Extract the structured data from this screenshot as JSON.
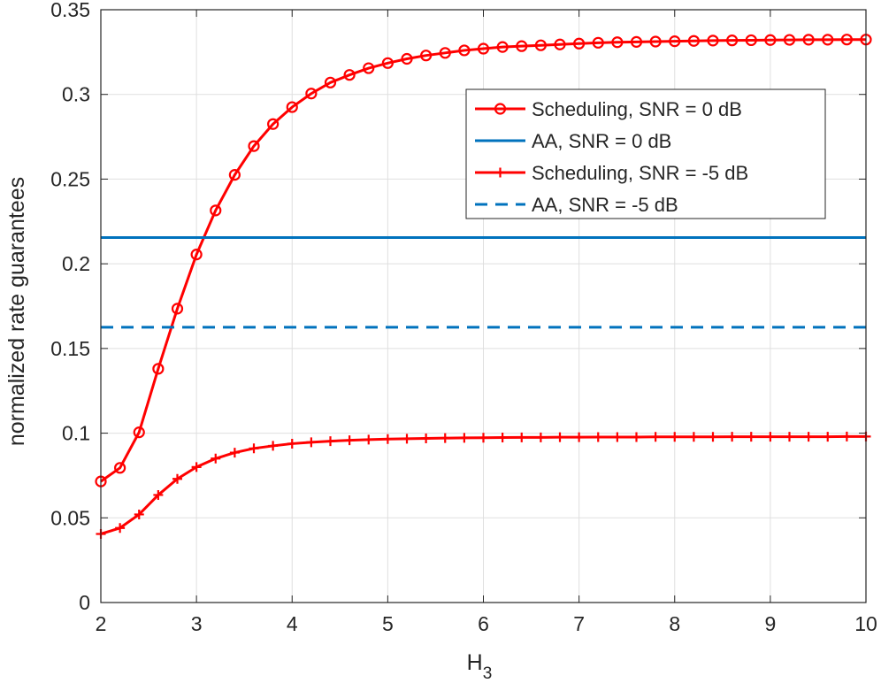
{
  "chart_data": {
    "type": "line",
    "xlabel": "H",
    "xlabel_subscript": "3",
    "ylabel": "normalized rate guarantees",
    "xlim": [
      2,
      10
    ],
    "ylim": [
      0,
      0.35
    ],
    "xticks": [
      2,
      3,
      4,
      5,
      6,
      7,
      8,
      9,
      10
    ],
    "xtick_labels": [
      "2",
      "3",
      "4",
      "5",
      "6",
      "7",
      "8",
      "9",
      "10"
    ],
    "yticks": [
      0,
      0.05,
      0.1,
      0.15,
      0.2,
      0.25,
      0.3,
      0.35
    ],
    "ytick_labels": [
      "0",
      "0.05",
      "0.1",
      "0.15",
      "0.2",
      "0.25",
      "0.3",
      "0.35"
    ],
    "grid": true,
    "legend_position": "top-right",
    "x": [
      2.0,
      2.2,
      2.4,
      2.6,
      2.8,
      3.0,
      3.2,
      3.4,
      3.6,
      3.8,
      4.0,
      4.2,
      4.4,
      4.6,
      4.8,
      5.0,
      5.2,
      5.4,
      5.6,
      5.8,
      6.0,
      6.2,
      6.4,
      6.6,
      6.8,
      7.0,
      7.2,
      7.4,
      7.6,
      7.8,
      8.0,
      8.2,
      8.4,
      8.6,
      8.8,
      9.0,
      9.2,
      9.4,
      9.6,
      9.8,
      10.0
    ],
    "series": [
      {
        "name": "Scheduling, SNR = 0 dB",
        "color": "#ff0000",
        "line_style": "solid",
        "marker": "circle",
        "values": [
          0.0715,
          0.0795,
          0.1005,
          0.138,
          0.1735,
          0.2055,
          0.2315,
          0.2525,
          0.2695,
          0.2825,
          0.2925,
          0.3005,
          0.307,
          0.3115,
          0.3155,
          0.3185,
          0.321,
          0.323,
          0.3245,
          0.326,
          0.327,
          0.328,
          0.3285,
          0.329,
          0.3295,
          0.33,
          0.3305,
          0.3308,
          0.331,
          0.3312,
          0.3314,
          0.3316,
          0.3318,
          0.3319,
          0.332,
          0.3321,
          0.3322,
          0.3323,
          0.3323,
          0.3324,
          0.3324
        ]
      },
      {
        "name": "AA, SNR = 0 dB",
        "color": "#0072bd",
        "line_style": "solid",
        "marker": "none",
        "constant": 0.2155
      },
      {
        "name": "Scheduling, SNR = -5 dB",
        "color": "#ff0000",
        "line_style": "solid",
        "marker": "plus",
        "values": [
          0.0405,
          0.044,
          0.052,
          0.0635,
          0.073,
          0.08,
          0.085,
          0.0885,
          0.091,
          0.0925,
          0.0938,
          0.0946,
          0.0953,
          0.0958,
          0.0962,
          0.0965,
          0.0967,
          0.0969,
          0.0971,
          0.0972,
          0.0973,
          0.0974,
          0.0975,
          0.0975,
          0.0976,
          0.0976,
          0.0977,
          0.0977,
          0.0977,
          0.0978,
          0.0978,
          0.0978,
          0.0978,
          0.0979,
          0.0979,
          0.0979,
          0.0979,
          0.0979,
          0.0979,
          0.098,
          0.098
        ]
      },
      {
        "name": "AA, SNR = -5 dB",
        "color": "#0072bd",
        "line_style": "dashed",
        "marker": "none",
        "constant": 0.1625
      }
    ]
  }
}
